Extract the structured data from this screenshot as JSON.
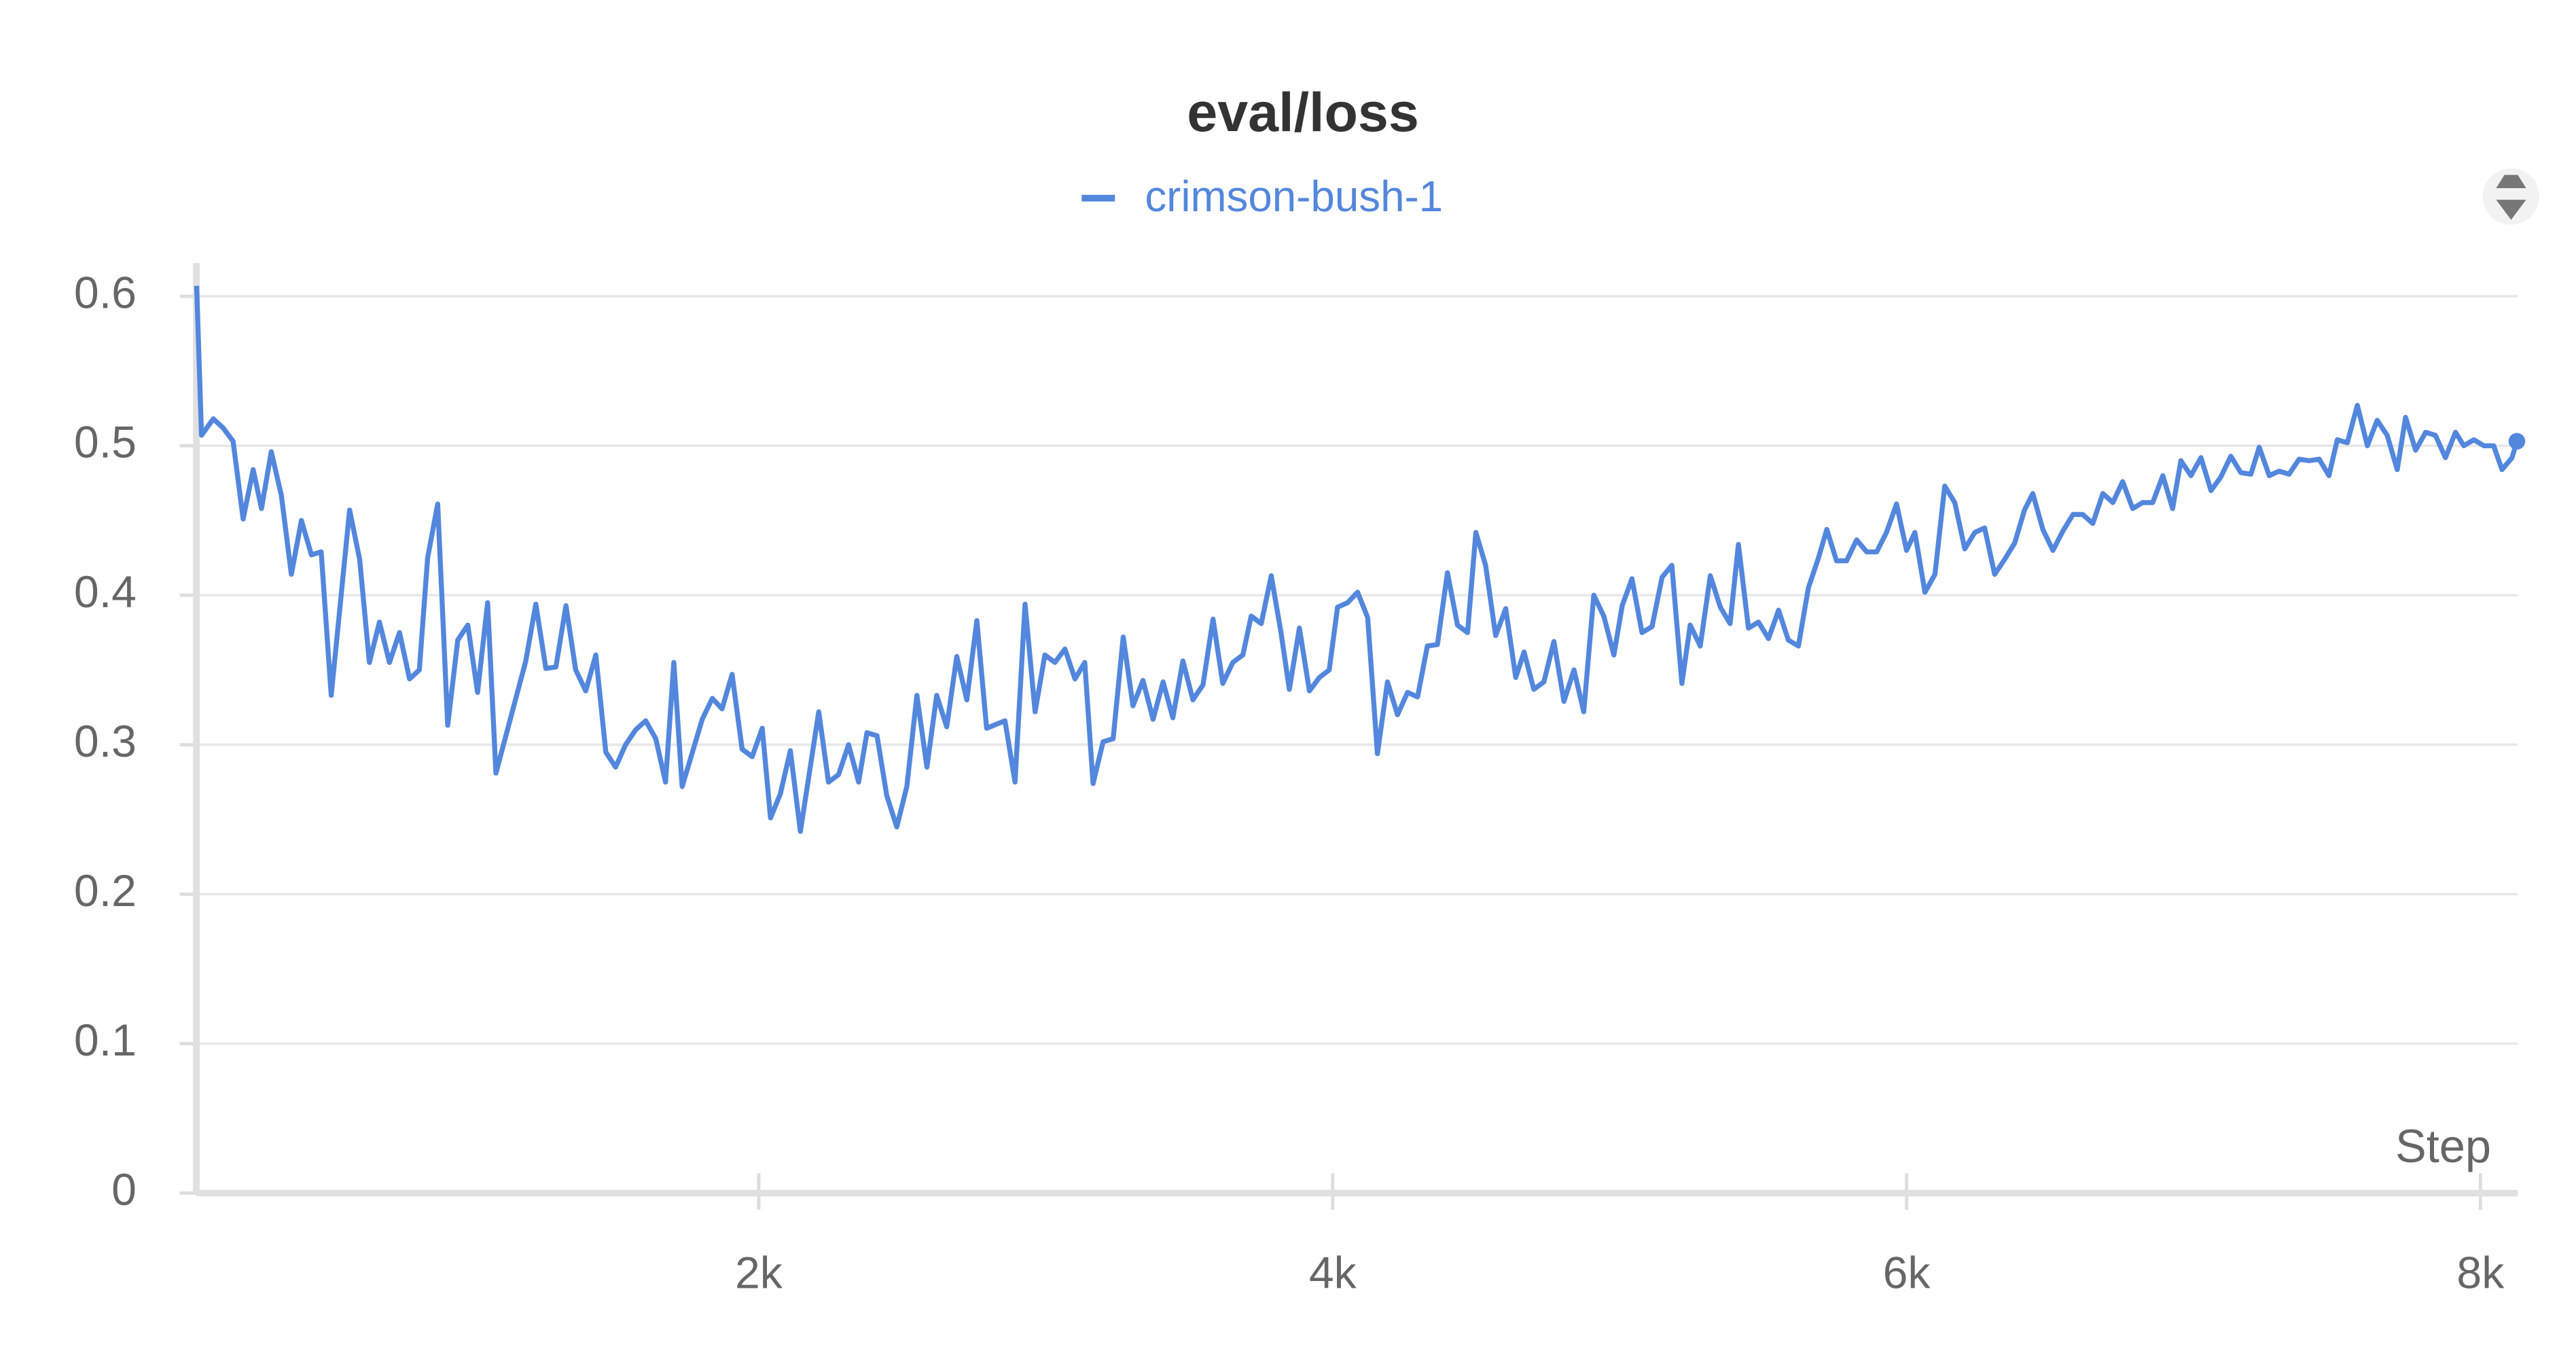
{
  "chart_data": {
    "type": "line",
    "title": "eval/loss",
    "xlabel": "Step",
    "x": [
      41,
      58,
      99,
      133,
      168,
      203,
      238,
      267,
      301,
      336,
      371,
      406,
      441,
      475,
      510,
      574,
      609,
      643,
      678,
      713,
      748,
      783,
      817,
      846,
      881,
      916,
      951,
      986,
      1020,
      1055,
      1084,
      1188,
      1223,
      1258,
      1293,
      1328,
      1362,
      1397,
      1432,
      1467,
      1501,
      1536,
      1571,
      1606,
      1641,
      1675,
      1704,
      1733,
      1803,
      1838,
      1872,
      1907,
      1942,
      1977,
      2012,
      2041,
      2075,
      2110,
      2145,
      2209,
      2243,
      2278,
      2313,
      2348,
      2377,
      2412,
      2446,
      2481,
      2516,
      2551,
      2586,
      2620,
      2655,
      2690,
      2725,
      2760,
      2794,
      2858,
      2893,
      2928,
      2963,
      2997,
      3032,
      3067,
      3102,
      3136,
      3165,
      3200,
      3235,
      3270,
      3304,
      3339,
      3374,
      3409,
      3443,
      3478,
      3513,
      3548,
      3583,
      3617,
      3652,
      3687,
      3716,
      3751,
      3786,
      3820,
      3849,
      3884,
      3919,
      3954,
      3988,
      4017,
      4052,
      4087,
      4122,
      4156,
      4191,
      4226,
      4261,
      4296,
      4330,
      4365,
      4400,
      4435,
      4470,
      4499,
      4533,
      4568,
      4603,
      4638,
      4667,
      4701,
      4736,
      4771,
      4806,
      4841,
      4875,
      4910,
      4945,
      4980,
      5009,
      5043,
      5078,
      5113,
      5148,
      5182,
      5217,
      5246,
      5281,
      5316,
      5351,
      5385,
      5414,
      5449,
      5484,
      5519,
      5554,
      5588,
      5623,
      5658,
      5693,
      5722,
      5756,
      5791,
      5826,
      5861,
      5896,
      5930,
      5965,
      6000,
      6029,
      6064,
      6099,
      6133,
      6168,
      6203,
      6238,
      6272,
      6307,
      6342,
      6377,
      6411,
      6440,
      6475,
      6510,
      6545,
      6580,
      6614,
      6649,
      6684,
      6719,
      6753,
      6788,
      6823,
      6858,
      6893,
      6927,
      6956,
      6991,
      7026,
      7061,
      7095,
      7130,
      7165,
      7200,
      7229,
      7264,
      7298,
      7333,
      7368,
      7403,
      7438,
      7472,
      7501,
      7536,
      7571,
      7606,
      7640,
      7675,
      7710,
      7739,
      7774,
      7809,
      7843,
      7878,
      7913,
      7942,
      7977,
      8012,
      8046,
      8075,
      8110,
      8127
    ],
    "series": [
      {
        "name": "crimson-bush-1",
        "color": "#5387dd",
        "values": [
          0.607,
          0.507,
          0.518,
          0.512,
          0.503,
          0.451,
          0.484,
          0.458,
          0.496,
          0.467,
          0.414,
          0.45,
          0.427,
          0.429,
          0.333,
          0.457,
          0.424,
          0.355,
          0.382,
          0.355,
          0.375,
          0.344,
          0.35,
          0.425,
          0.461,
          0.313,
          0.37,
          0.38,
          0.335,
          0.395,
          0.281,
          0.356,
          0.394,
          0.351,
          0.352,
          0.393,
          0.35,
          0.336,
          0.36,
          0.295,
          0.285,
          0.3,
          0.31,
          0.316,
          0.304,
          0.275,
          0.355,
          0.272,
          0.317,
          0.331,
          0.324,
          0.347,
          0.297,
          0.292,
          0.311,
          0.251,
          0.267,
          0.296,
          0.242,
          0.322,
          0.275,
          0.28,
          0.3,
          0.275,
          0.308,
          0.306,
          0.266,
          0.245,
          0.272,
          0.333,
          0.285,
          0.333,
          0.312,
          0.359,
          0.33,
          0.383,
          0.311,
          0.316,
          0.275,
          0.394,
          0.322,
          0.36,
          0.355,
          0.364,
          0.344,
          0.355,
          0.274,
          0.302,
          0.304,
          0.372,
          0.326,
          0.343,
          0.317,
          0.342,
          0.318,
          0.356,
          0.33,
          0.34,
          0.384,
          0.341,
          0.355,
          0.36,
          0.386,
          0.381,
          0.413,
          0.375,
          0.337,
          0.378,
          0.336,
          0.345,
          0.35,
          0.392,
          0.395,
          0.402,
          0.385,
          0.294,
          0.342,
          0.32,
          0.335,
          0.332,
          0.366,
          0.367,
          0.415,
          0.38,
          0.375,
          0.442,
          0.42,
          0.373,
          0.391,
          0.345,
          0.362,
          0.337,
          0.342,
          0.369,
          0.329,
          0.35,
          0.322,
          0.4,
          0.386,
          0.36,
          0.393,
          0.411,
          0.375,
          0.379,
          0.412,
          0.42,
          0.341,
          0.38,
          0.366,
          0.413,
          0.392,
          0.381,
          0.434,
          0.378,
          0.382,
          0.371,
          0.39,
          0.37,
          0.366,
          0.405,
          0.425,
          0.444,
          0.423,
          0.423,
          0.437,
          0.429,
          0.429,
          0.442,
          0.461,
          0.43,
          0.442,
          0.402,
          0.414,
          0.473,
          0.462,
          0.431,
          0.442,
          0.445,
          0.414,
          0.424,
          0.435,
          0.457,
          0.468,
          0.444,
          0.43,
          0.443,
          0.454,
          0.454,
          0.448,
          0.468,
          0.462,
          0.476,
          0.458,
          0.462,
          0.462,
          0.48,
          0.458,
          0.49,
          0.48,
          0.492,
          0.47,
          0.479,
          0.493,
          0.482,
          0.481,
          0.499,
          0.48,
          0.483,
          0.481,
          0.491,
          0.49,
          0.491,
          0.48,
          0.504,
          0.502,
          0.527,
          0.5,
          0.517,
          0.507,
          0.484,
          0.519,
          0.497,
          0.509,
          0.507,
          0.492,
          0.509,
          0.5,
          0.504,
          0.5,
          0.5,
          0.484,
          0.492,
          0.503
        ]
      }
    ],
    "xlim": [
      40,
      8130
    ],
    "ylim": [
      0,
      0.62
    ],
    "xticks": [
      {
        "value": 2000,
        "label": "2k"
      },
      {
        "value": 4000,
        "label": "4k"
      },
      {
        "value": 6000,
        "label": "6k"
      },
      {
        "value": 8000,
        "label": "8k"
      }
    ],
    "yticks": [
      0,
      0.1,
      0.2,
      0.3,
      0.4,
      0.5,
      0.6
    ],
    "grid": true
  }
}
